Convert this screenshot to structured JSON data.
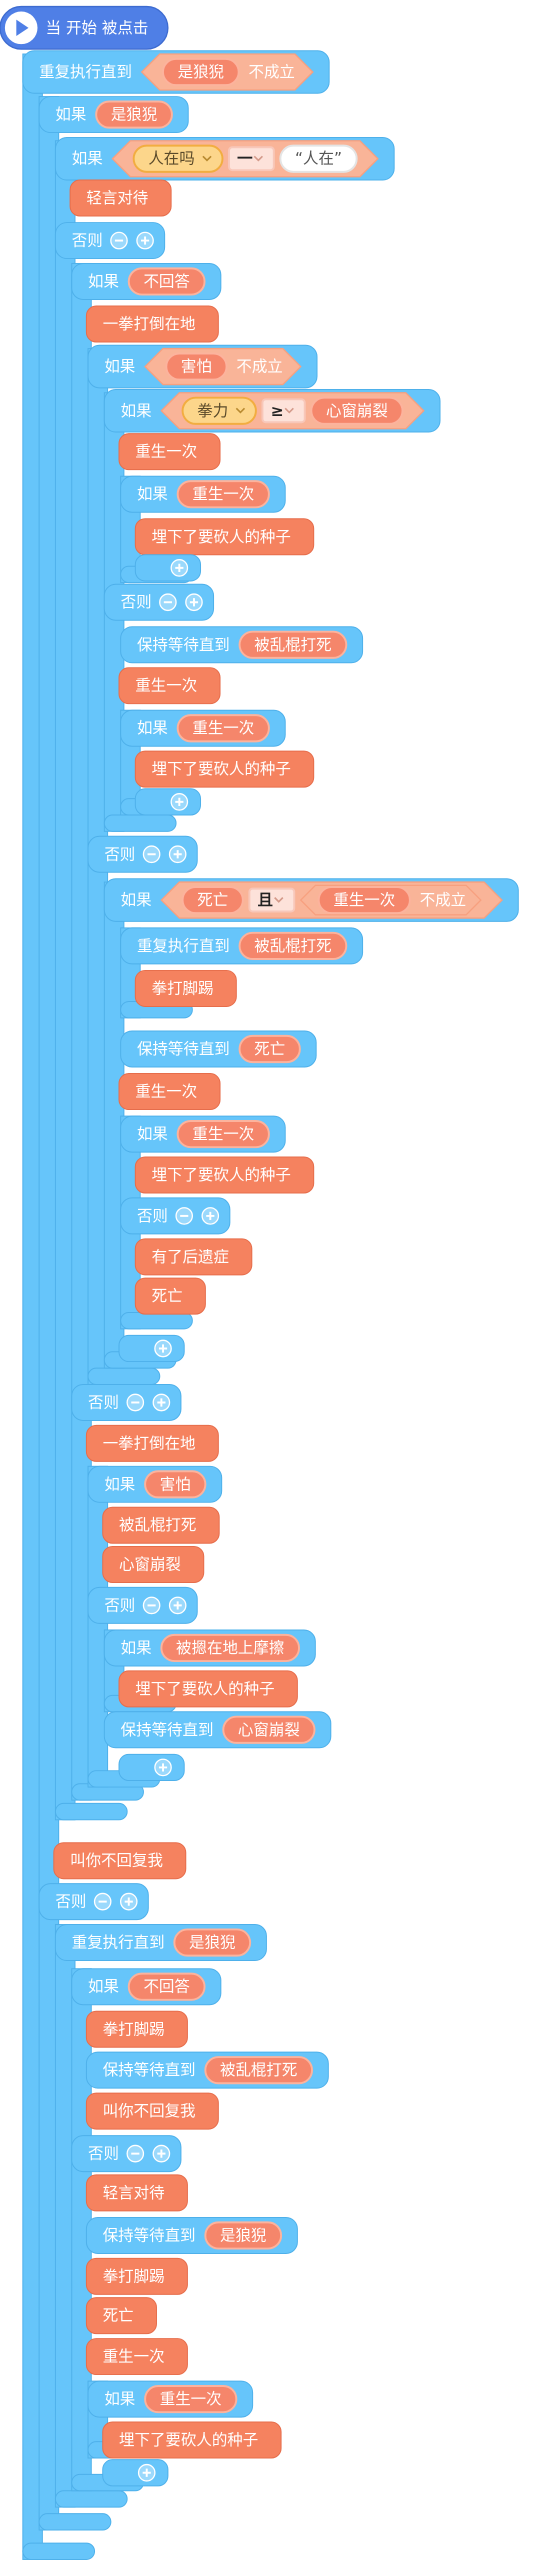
{
  "rows": [
    {
      "kind": "hat",
      "text": "当 开始 被点击"
    },
    {
      "kind": "control",
      "text": "重复执行直到",
      "args": [
        {
          "kind": "not",
          "text": "不成立",
          "items": [
            {
              "kind": "reporter",
              "text": "是狼猊"
            }
          ]
        }
      ]
    },
    {
      "kind": "control",
      "text": "如果",
      "args": [
        {
          "kind": "reporter",
          "text": "是狼猊"
        }
      ]
    },
    {
      "kind": "control",
      "text": "如果",
      "args": [
        {
          "kind": "compare",
          "items": [
            {
              "kind": "variable",
              "text": "人在吗"
            },
            {
              "kind": "operator",
              "text": "一"
            },
            {
              "kind": "string",
              "text": "“人在”"
            }
          ]
        }
      ]
    },
    {
      "kind": "action",
      "text": "轻言对待"
    },
    {
      "kind": "else",
      "text": "否则"
    },
    {
      "kind": "control",
      "text": "如果",
      "args": [
        {
          "kind": "reporter",
          "text": "不回答"
        }
      ]
    },
    {
      "kind": "action",
      "text": "一拳打倒在地"
    },
    {
      "kind": "control",
      "text": "如果",
      "args": [
        {
          "kind": "not",
          "text": "不成立",
          "items": [
            {
              "kind": "reporter",
              "text": "害怕"
            }
          ]
        }
      ]
    },
    {
      "kind": "control",
      "text": "如果",
      "args": [
        {
          "kind": "compare",
          "items": [
            {
              "kind": "variable",
              "text": "拳力"
            },
            {
              "kind": "operator",
              "text": "≥"
            },
            {
              "kind": "reporter",
              "text": "心窗崩裂"
            }
          ]
        }
      ]
    },
    {
      "kind": "action",
      "text": "重生一次"
    },
    {
      "kind": "control",
      "text": "如果",
      "args": [
        {
          "kind": "reporter",
          "text": "重生一次"
        }
      ]
    },
    {
      "kind": "action",
      "text": "埋下了要砍人的种子"
    },
    {
      "kind": "add"
    },
    {
      "kind": "else",
      "text": "否则"
    },
    {
      "kind": "control",
      "text": "保持等待直到",
      "args": [
        {
          "kind": "reporter",
          "text": "被乱棍打死"
        }
      ]
    },
    {
      "kind": "action",
      "text": "重生一次"
    },
    {
      "kind": "control",
      "text": "如果",
      "args": [
        {
          "kind": "reporter",
          "text": "重生一次"
        }
      ]
    },
    {
      "kind": "action",
      "text": "埋下了要砍人的种子"
    },
    {
      "kind": "add"
    },
    {
      "kind": "else",
      "text": "否则"
    },
    {
      "kind": "control",
      "text": "如果",
      "args": [
        {
          "kind": "compare",
          "items": [
            {
              "kind": "reporter",
              "text": "死亡"
            },
            {
              "kind": "operator",
              "text": "且"
            },
            {
              "kind": "not",
              "text": "不成立",
              "items": [
                {
                  "kind": "reporter",
                  "text": "重生一次"
                }
              ]
            }
          ]
        }
      ]
    },
    {
      "kind": "control",
      "text": "重复执行直到",
      "args": [
        {
          "kind": "reporter",
          "text": "被乱棍打死"
        }
      ]
    },
    {
      "kind": "action",
      "text": "拳打脚踢"
    },
    {
      "kind": "control",
      "text": "保持等待直到",
      "args": [
        {
          "kind": "reporter",
          "text": "死亡"
        }
      ]
    },
    {
      "kind": "action",
      "text": "重生一次"
    },
    {
      "kind": "control",
      "text": "如果",
      "args": [
        {
          "kind": "reporter",
          "text": "重生一次"
        }
      ]
    },
    {
      "kind": "action",
      "text": "埋下了要砍人的种子"
    },
    {
      "kind": "else",
      "text": "否则"
    },
    {
      "kind": "action",
      "text": "有了后遗症"
    },
    {
      "kind": "action",
      "text": "死亡"
    },
    {
      "kind": "add"
    },
    {
      "kind": "else",
      "text": "否则"
    },
    {
      "kind": "action",
      "text": "一拳打倒在地"
    },
    {
      "kind": "control",
      "text": "如果",
      "args": [
        {
          "kind": "reporter",
          "text": "害怕"
        }
      ]
    },
    {
      "kind": "action",
      "text": "被乱棍打死"
    },
    {
      "kind": "action",
      "text": "心窗崩裂"
    },
    {
      "kind": "else",
      "text": "否则"
    },
    {
      "kind": "control",
      "text": "如果",
      "args": [
        {
          "kind": "reporter",
          "text": "被摁在地上摩擦"
        }
      ]
    },
    {
      "kind": "action",
      "text": "埋下了要砍人的种子"
    },
    {
      "kind": "control",
      "text": "保持等待直到",
      "args": [
        {
          "kind": "reporter",
          "text": "心窗崩裂"
        }
      ]
    },
    {
      "kind": "add"
    },
    {
      "kind": "action",
      "text": "叫你不回复我"
    },
    {
      "kind": "else",
      "text": "否则"
    },
    {
      "kind": "control",
      "text": "重复执行直到",
      "args": [
        {
          "kind": "reporter",
          "text": "是狼猊"
        }
      ]
    },
    {
      "kind": "control",
      "text": "如果",
      "args": [
        {
          "kind": "reporter",
          "text": "不回答"
        }
      ]
    },
    {
      "kind": "action",
      "text": "拳打脚踢"
    },
    {
      "kind": "control",
      "text": "保持等待直到",
      "args": [
        {
          "kind": "reporter",
          "text": "被乱棍打死"
        }
      ]
    },
    {
      "kind": "action",
      "text": "叫你不回复我"
    },
    {
      "kind": "else",
      "text": "否则"
    },
    {
      "kind": "action",
      "text": "轻言对待"
    },
    {
      "kind": "control",
      "text": "保持等待直到",
      "args": [
        {
          "kind": "reporter",
          "text": "是狼猊"
        }
      ]
    },
    {
      "kind": "action",
      "text": "拳打脚踢"
    },
    {
      "kind": "action",
      "text": "死亡"
    },
    {
      "kind": "action",
      "text": "重生一次"
    },
    {
      "kind": "control",
      "text": "如果",
      "args": [
        {
          "kind": "reporter",
          "text": "重生一次"
        }
      ]
    },
    {
      "kind": "action",
      "text": "埋下了要砍人的种子"
    },
    {
      "kind": "add"
    }
  ]
}
